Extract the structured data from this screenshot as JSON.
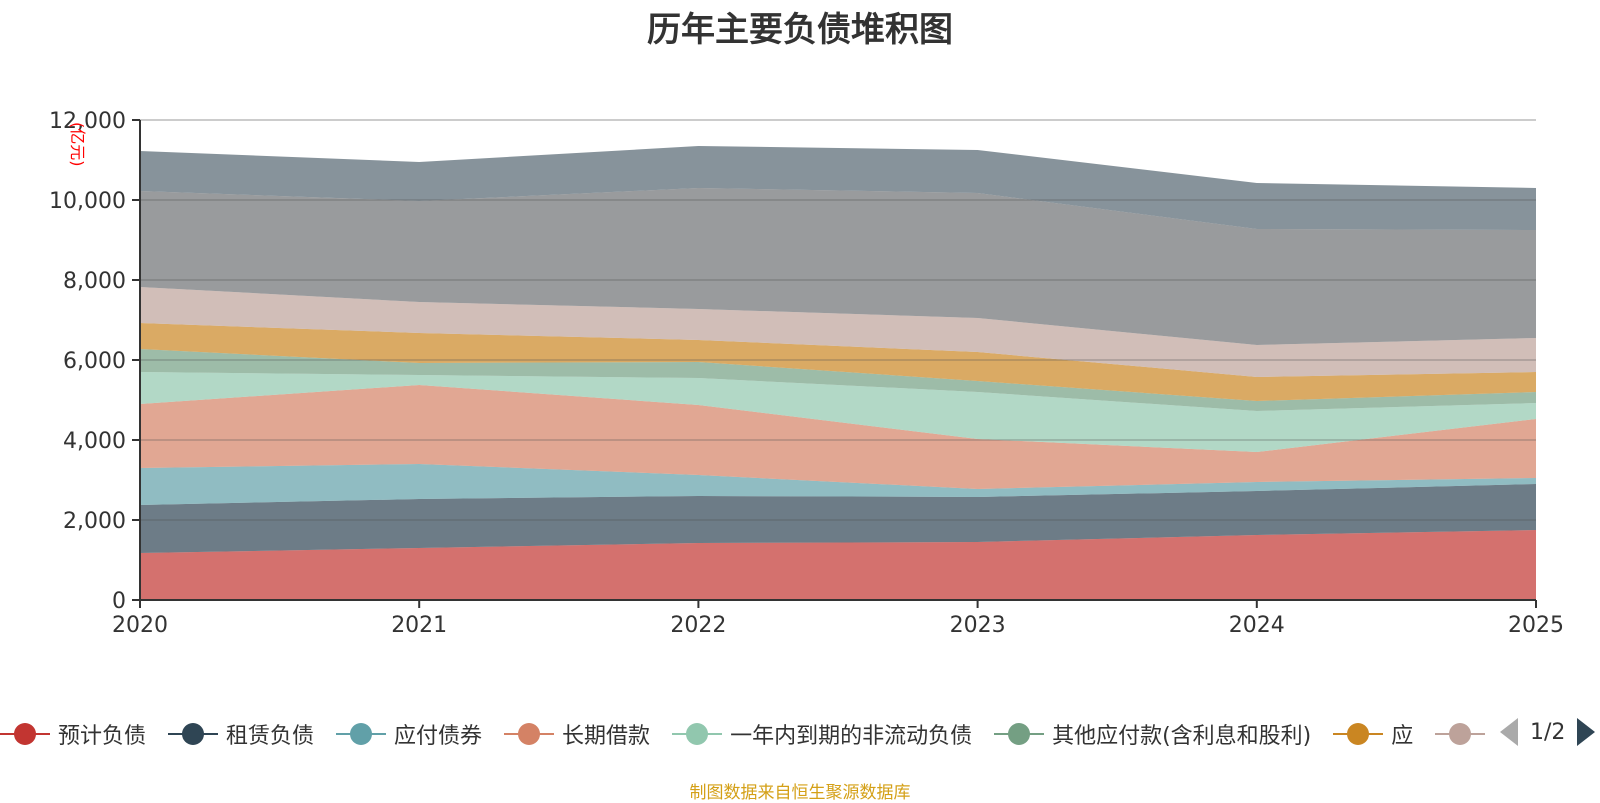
{
  "chart_data": {
    "type": "area",
    "stacked": true,
    "title": "历年主要负债堆积图",
    "xlabel": "",
    "ylabel": "(亿元)",
    "x": [
      "2020",
      "2021",
      "2022",
      "2023",
      "2024",
      "2025"
    ],
    "ylim": [
      0,
      12000
    ],
    "yticks": [
      0,
      2000,
      4000,
      6000,
      8000,
      10000,
      12000
    ],
    "ytick_labels": [
      "0",
      "2,000",
      "4,000",
      "6,000",
      "8,000",
      "10,000",
      "12,000"
    ],
    "grid": true,
    "series": [
      {
        "name": "预计负债",
        "color": "#c23531",
        "values": [
          1175,
          1300,
          1425,
          1450,
          1625,
          1750
        ]
      },
      {
        "name": "租赁负债",
        "color": "#2f4554",
        "values": [
          1200,
          1225,
          1175,
          1125,
          1100,
          1150
        ]
      },
      {
        "name": "应付债券",
        "color": "#61a0a8",
        "values": [
          925,
          875,
          525,
          200,
          225,
          150
        ]
      },
      {
        "name": "长期借款",
        "color": "#d48265",
        "values": [
          1600,
          1975,
          1750,
          1250,
          750,
          1475
        ]
      },
      {
        "name": "一年内到期的非流动负债",
        "color": "#91c7ae",
        "values": [
          800,
          250,
          675,
          1175,
          1025,
          400
        ]
      },
      {
        "name": "其他应付款(含利息和股利)",
        "color": "#749f83",
        "values": [
          575,
          300,
          400,
          275,
          250,
          275
        ]
      },
      {
        "name": "应",
        "color": "#ca8622",
        "values": [
          650,
          750,
          550,
          725,
          600,
          500
        ]
      },
      {
        "name": "",
        "color": "#bda29a",
        "values": [
          900,
          775,
          775,
          850,
          800,
          850
        ]
      },
      {
        "name": "",
        "color": "#6e7074",
        "values": [
          2400,
          2525,
          3025,
          3125,
          2900,
          2700
        ]
      },
      {
        "name": "",
        "color": "#546570",
        "values": [
          1000,
          975,
          1050,
          1075,
          1150,
          1050
        ]
      }
    ],
    "legend": {
      "placement": "bottom",
      "visible_items": 7,
      "truncated_item_text": "应",
      "page": "1/2"
    }
  },
  "source_note": "制图数据来自恒生聚源数据库"
}
